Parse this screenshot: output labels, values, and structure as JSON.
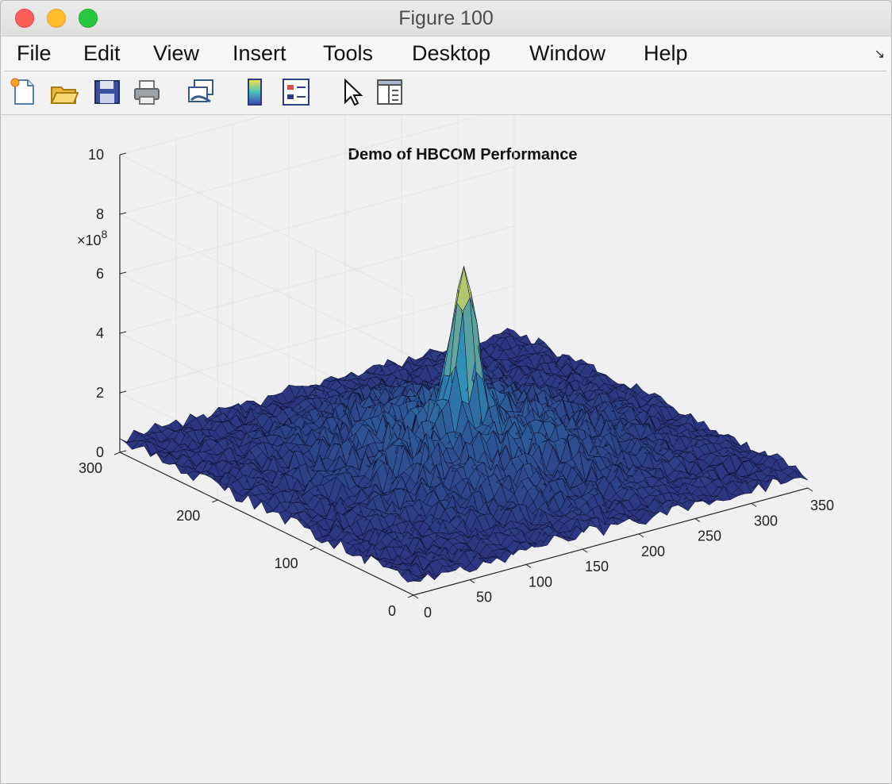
{
  "window": {
    "title": "Figure 100"
  },
  "menu": [
    "File",
    "Edit",
    "View",
    "Insert",
    "Tools",
    "Desktop",
    "Window",
    "Help"
  ],
  "toolbar": {
    "icons": [
      "new-figure-icon",
      "open-file-icon",
      "save-icon",
      "print-icon",
      "link-plot-icon",
      "colorbar-icon",
      "legend-icon",
      "edit-plot-arrow-icon",
      "property-inspector-icon"
    ]
  },
  "colors": {
    "surface_low": "#2c2a78",
    "surface_mid": "#2f8fb8",
    "surface_peak": "#f1e34a",
    "grid": "#e3e3e3"
  },
  "chart_data": {
    "type": "surface",
    "title": "Demo of HBCOM Performance",
    "z_exponent_label": "×10",
    "z_exponent": "8",
    "x_ticks": [
      "0",
      "50",
      "100",
      "150",
      "200",
      "250",
      "300",
      "350"
    ],
    "y_ticks": [
      "0",
      "100",
      "200",
      "300"
    ],
    "z_ticks": [
      "0",
      "2",
      "4",
      "6",
      "8",
      "10"
    ],
    "xlim": [
      0,
      350
    ],
    "ylim": [
      0,
      300
    ],
    "zlim": [
      0,
      1000000000
    ],
    "peak": {
      "x": 175,
      "y": 150,
      "z": 750000000
    },
    "background_level_z": [
      20000000,
      250000000
    ],
    "grid": true,
    "colormap": "parula"
  }
}
